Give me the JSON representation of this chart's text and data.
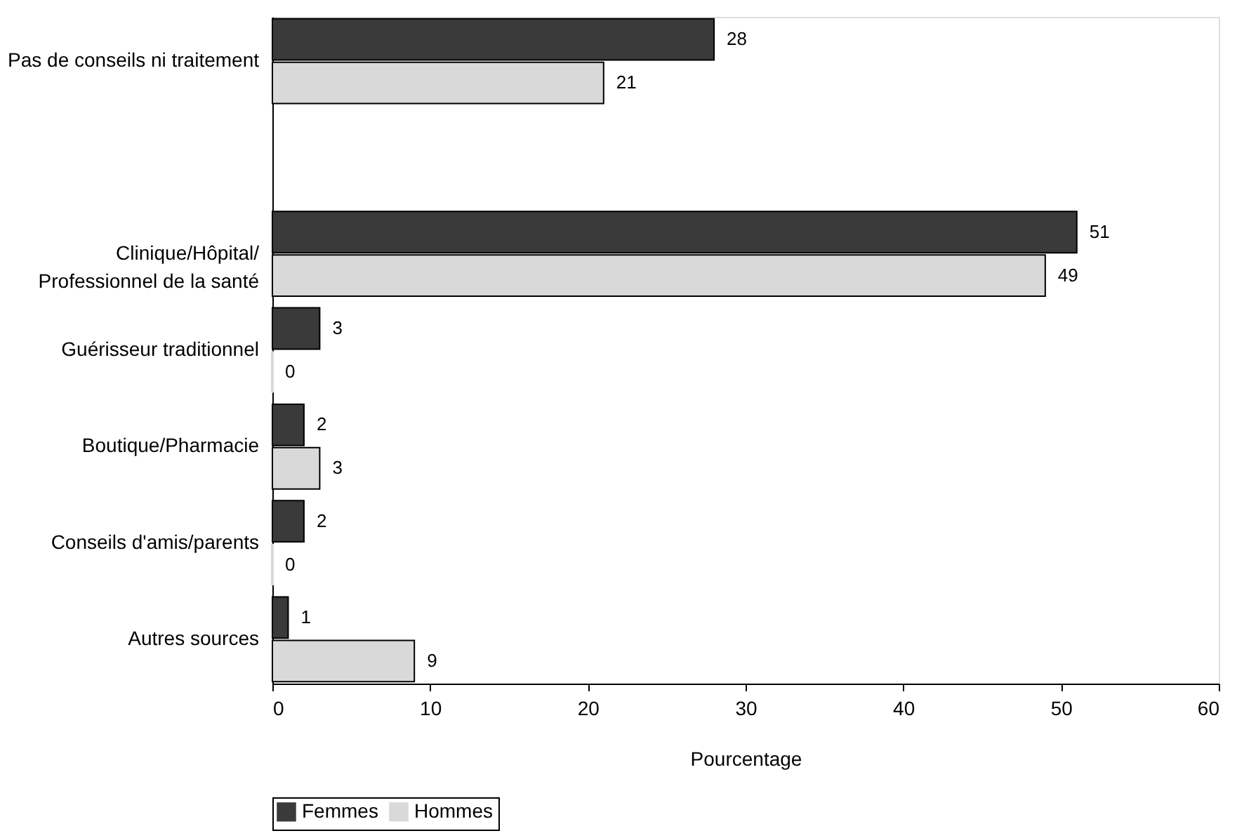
{
  "chart_data": {
    "type": "bar",
    "orientation": "horizontal",
    "categories": [
      "Pas de conseils ni traitement",
      null,
      "Clinique/Hôpital/\nProfessionnel de la santé",
      "Guérisseur traditionnel",
      "Boutique/Pharmacie",
      "Conseils d'amis/parents",
      "Autres sources"
    ],
    "series": [
      {
        "name": "Femmes",
        "color": "#3a3a3a",
        "values": [
          28,
          null,
          51,
          3,
          2,
          2,
          1
        ]
      },
      {
        "name": "Hommes",
        "color": "#d9d9d9",
        "values": [
          21,
          null,
          49,
          0,
          3,
          0,
          9
        ]
      }
    ],
    "xlabel": "Pourcentage",
    "xlim": [
      0,
      60
    ],
    "xticks": [
      0,
      10,
      20,
      30,
      40,
      50,
      60
    ],
    "data_labels": true,
    "legend": "bottom",
    "grid": false
  }
}
